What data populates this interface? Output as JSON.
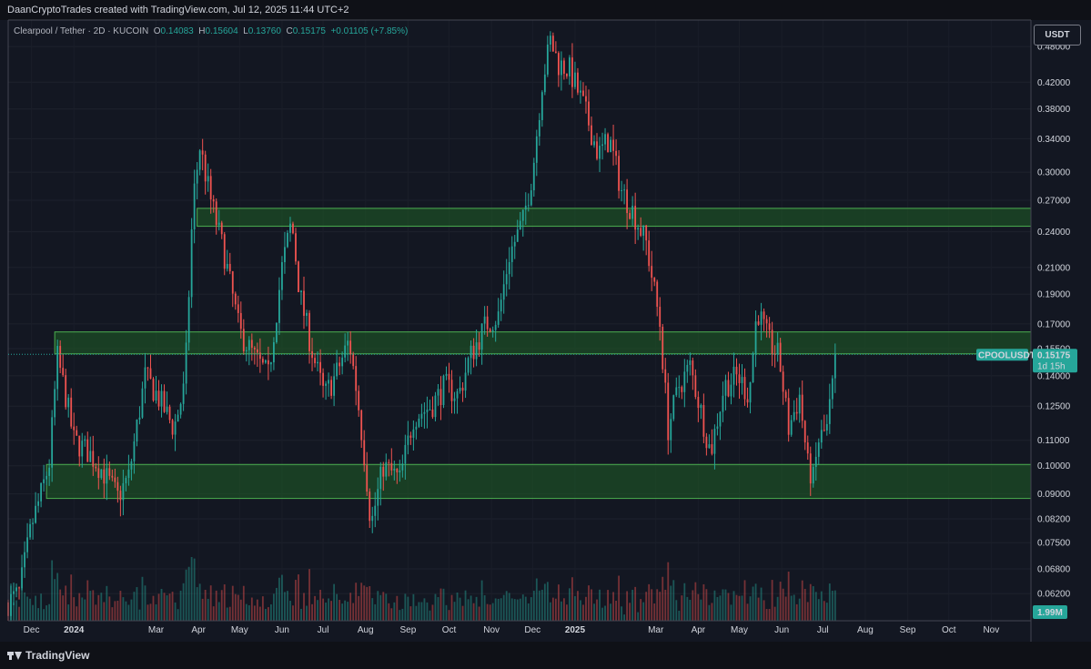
{
  "header": {
    "caption": "DaanCryptoTrades created with TradingView.com, Jul 12, 2025 11:44 UTC+2"
  },
  "legend": {
    "symbol": "Clearpool / Tether · 2D · KUCOIN",
    "open_key": "O",
    "open": "0.14083",
    "high_key": "H",
    "high": "0.15604",
    "low_key": "L",
    "low": "0.13760",
    "close_key": "C",
    "close": "0.15175",
    "change": "+0.01105 (+7.85%)"
  },
  "currency_button": "USDT",
  "price_tag": {
    "ticker": "CPOOLUSDT",
    "price": "0.15175",
    "countdown": "1d 15h"
  },
  "volume_tag": "1.99M",
  "footer": {
    "brand": "TradingView"
  },
  "colors": {
    "up": "#26a69a",
    "down": "#ef5350",
    "zone_fill": "#1f5e26",
    "zone_edge": "#4caf50",
    "background": "#131722"
  },
  "chart_data": {
    "type": "candlestick",
    "title": "",
    "symbol": "CPOOLUSDT",
    "timeframe": "2D",
    "scale": "log",
    "y_ticks": [
      0.48,
      0.42,
      0.38,
      0.34,
      0.3,
      0.27,
      0.24,
      0.21,
      0.19,
      0.17,
      0.155,
      0.14,
      0.125,
      0.11,
      0.1,
      0.09,
      0.082,
      0.075,
      0.068,
      0.062
    ],
    "y_tick_labels": [
      "0.48000",
      "0.42000",
      "0.38000",
      "0.34000",
      "0.30000",
      "0.27000",
      "0.24000",
      "0.21000",
      "0.19000",
      "0.17000",
      "0.15500",
      "0.14000",
      "0.12500",
      "0.11000",
      "0.10000",
      "0.09000",
      "0.08200",
      "0.07500",
      "0.06800",
      "0.06200"
    ],
    "ylim": [
      0.056,
      0.53
    ],
    "x_range": [
      "2023-11-14",
      "2025-11-30"
    ],
    "x_ticks": [
      {
        "date": "2023-12-01",
        "label": "Dec"
      },
      {
        "date": "2024-01-01",
        "label": "2024"
      },
      {
        "date": "2024-03-01",
        "label": "Mar"
      },
      {
        "date": "2024-04-01",
        "label": "Apr"
      },
      {
        "date": "2024-05-01",
        "label": "May"
      },
      {
        "date": "2024-06-01",
        "label": "Jun"
      },
      {
        "date": "2024-07-01",
        "label": "Jul"
      },
      {
        "date": "2024-08-01",
        "label": "Aug"
      },
      {
        "date": "2024-09-01",
        "label": "Sep"
      },
      {
        "date": "2024-10-01",
        "label": "Oct"
      },
      {
        "date": "2024-11-01",
        "label": "Nov"
      },
      {
        "date": "2024-12-01",
        "label": "Dec"
      },
      {
        "date": "2025-01-01",
        "label": "2025"
      },
      {
        "date": "2025-03-01",
        "label": "Mar"
      },
      {
        "date": "2025-04-01",
        "label": "Apr"
      },
      {
        "date": "2025-05-01",
        "label": "May"
      },
      {
        "date": "2025-06-01",
        "label": "Jun"
      },
      {
        "date": "2025-07-01",
        "label": "Jul"
      },
      {
        "date": "2025-08-01",
        "label": "Aug"
      },
      {
        "date": "2025-09-01",
        "label": "Sep"
      },
      {
        "date": "2025-10-01",
        "label": "Oct"
      },
      {
        "date": "2025-11-01",
        "label": "Nov"
      }
    ],
    "zones": [
      {
        "from_date": "2024-03-31",
        "low": 0.245,
        "high": 0.262
      },
      {
        "from_date": "2023-12-18",
        "low": 0.152,
        "high": 0.165
      },
      {
        "from_date": "2023-12-12",
        "low": 0.0885,
        "high": 0.1005
      }
    ],
    "last_price": 0.15175,
    "price_path": [
      [
        "2023-11-14",
        0.06
      ],
      [
        "2023-11-22",
        0.062
      ],
      [
        "2023-12-01",
        0.08
      ],
      [
        "2023-12-08",
        0.09
      ],
      [
        "2023-12-14",
        0.101
      ],
      [
        "2023-12-20",
        0.15
      ],
      [
        "2023-12-26",
        0.13
      ],
      [
        "2024-01-01",
        0.11
      ],
      [
        "2024-01-12",
        0.105
      ],
      [
        "2024-01-22",
        0.098
      ],
      [
        "2024-02-02",
        0.089
      ],
      [
        "2024-02-10",
        0.096
      ],
      [
        "2024-02-22",
        0.14
      ],
      [
        "2024-03-02",
        0.13
      ],
      [
        "2024-03-14",
        0.115
      ],
      [
        "2024-03-22",
        0.135
      ],
      [
        "2024-03-28",
        0.27
      ],
      [
        "2024-04-02",
        0.33
      ],
      [
        "2024-04-10",
        0.27
      ],
      [
        "2024-04-20",
        0.22
      ],
      [
        "2024-05-01",
        0.165
      ],
      [
        "2024-05-12",
        0.15
      ],
      [
        "2024-05-22",
        0.14
      ],
      [
        "2024-06-01",
        0.21
      ],
      [
        "2024-06-08",
        0.25
      ],
      [
        "2024-06-14",
        0.19
      ],
      [
        "2024-06-24",
        0.15
      ],
      [
        "2024-07-02",
        0.13
      ],
      [
        "2024-07-10",
        0.14
      ],
      [
        "2024-07-20",
        0.16
      ],
      [
        "2024-07-26",
        0.13
      ],
      [
        "2024-08-01",
        0.1
      ],
      [
        "2024-08-05",
        0.08
      ],
      [
        "2024-08-14",
        0.1
      ],
      [
        "2024-08-26",
        0.095
      ],
      [
        "2024-09-05",
        0.12
      ],
      [
        "2024-09-18",
        0.125
      ],
      [
        "2024-09-28",
        0.135
      ],
      [
        "2024-10-08",
        0.13
      ],
      [
        "2024-10-16",
        0.15
      ],
      [
        "2024-10-28",
        0.17
      ],
      [
        "2024-11-06",
        0.175
      ],
      [
        "2024-11-14",
        0.22
      ],
      [
        "2024-11-24",
        0.25
      ],
      [
        "2024-12-01",
        0.3
      ],
      [
        "2024-12-08",
        0.42
      ],
      [
        "2024-12-14",
        0.49
      ],
      [
        "2024-12-20",
        0.45
      ],
      [
        "2024-12-28",
        0.44
      ],
      [
        "2025-01-08",
        0.38
      ],
      [
        "2025-01-18",
        0.32
      ],
      [
        "2025-01-26",
        0.34
      ],
      [
        "2025-02-04",
        0.28
      ],
      [
        "2025-02-12",
        0.26
      ],
      [
        "2025-02-22",
        0.23
      ],
      [
        "2025-03-04",
        0.17
      ],
      [
        "2025-03-10",
        0.115
      ],
      [
        "2025-03-18",
        0.135
      ],
      [
        "2025-03-26",
        0.145
      ],
      [
        "2025-04-04",
        0.12
      ],
      [
        "2025-04-10",
        0.105
      ],
      [
        "2025-04-20",
        0.135
      ],
      [
        "2025-04-30",
        0.14
      ],
      [
        "2025-05-08",
        0.13
      ],
      [
        "2025-05-14",
        0.18
      ],
      [
        "2025-05-22",
        0.16
      ],
      [
        "2025-05-30",
        0.15
      ],
      [
        "2025-06-06",
        0.115
      ],
      [
        "2025-06-14",
        0.13
      ],
      [
        "2025-06-20",
        0.1
      ],
      [
        "2025-06-24",
        0.095
      ],
      [
        "2025-06-28",
        0.11
      ],
      [
        "2025-07-04",
        0.115
      ],
      [
        "2025-07-11",
        0.15175
      ]
    ],
    "volume_tag": "1.99M"
  }
}
